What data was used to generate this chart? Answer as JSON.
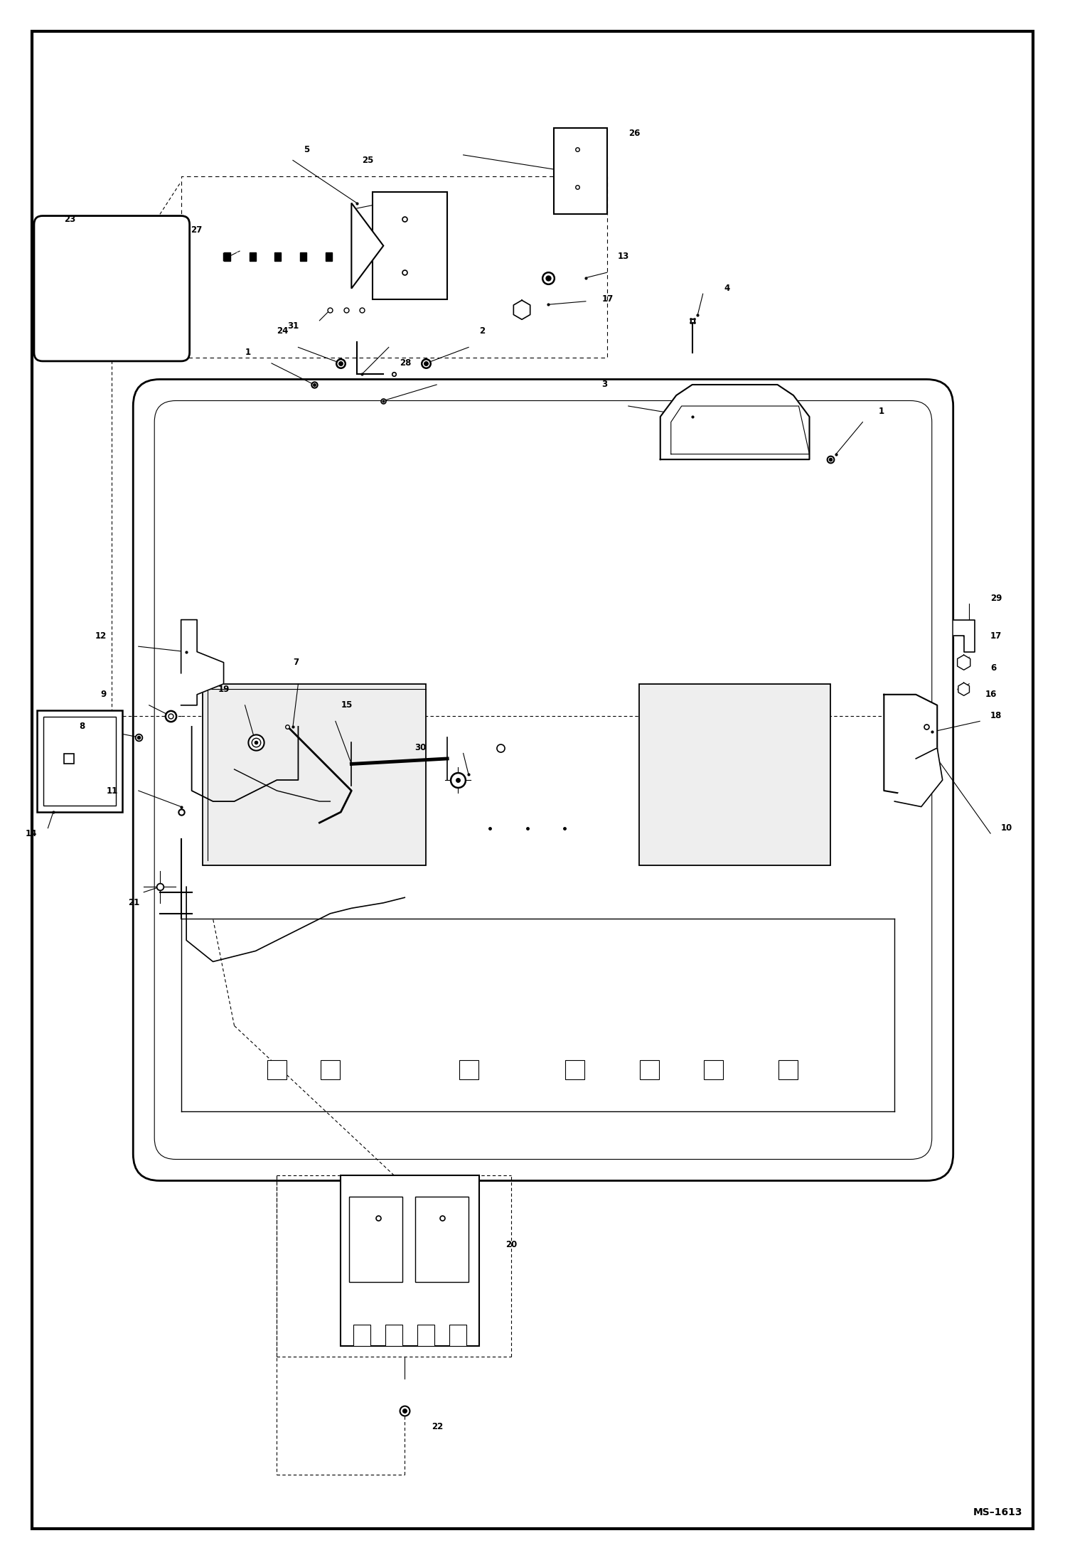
{
  "bg_color": "#ffffff",
  "border_color": "#000000",
  "fig_width": 14.98,
  "fig_height": 21.94,
  "page_label": "MS–1613",
  "border": [
    0.03,
    0.02,
    0.94,
    0.96
  ]
}
